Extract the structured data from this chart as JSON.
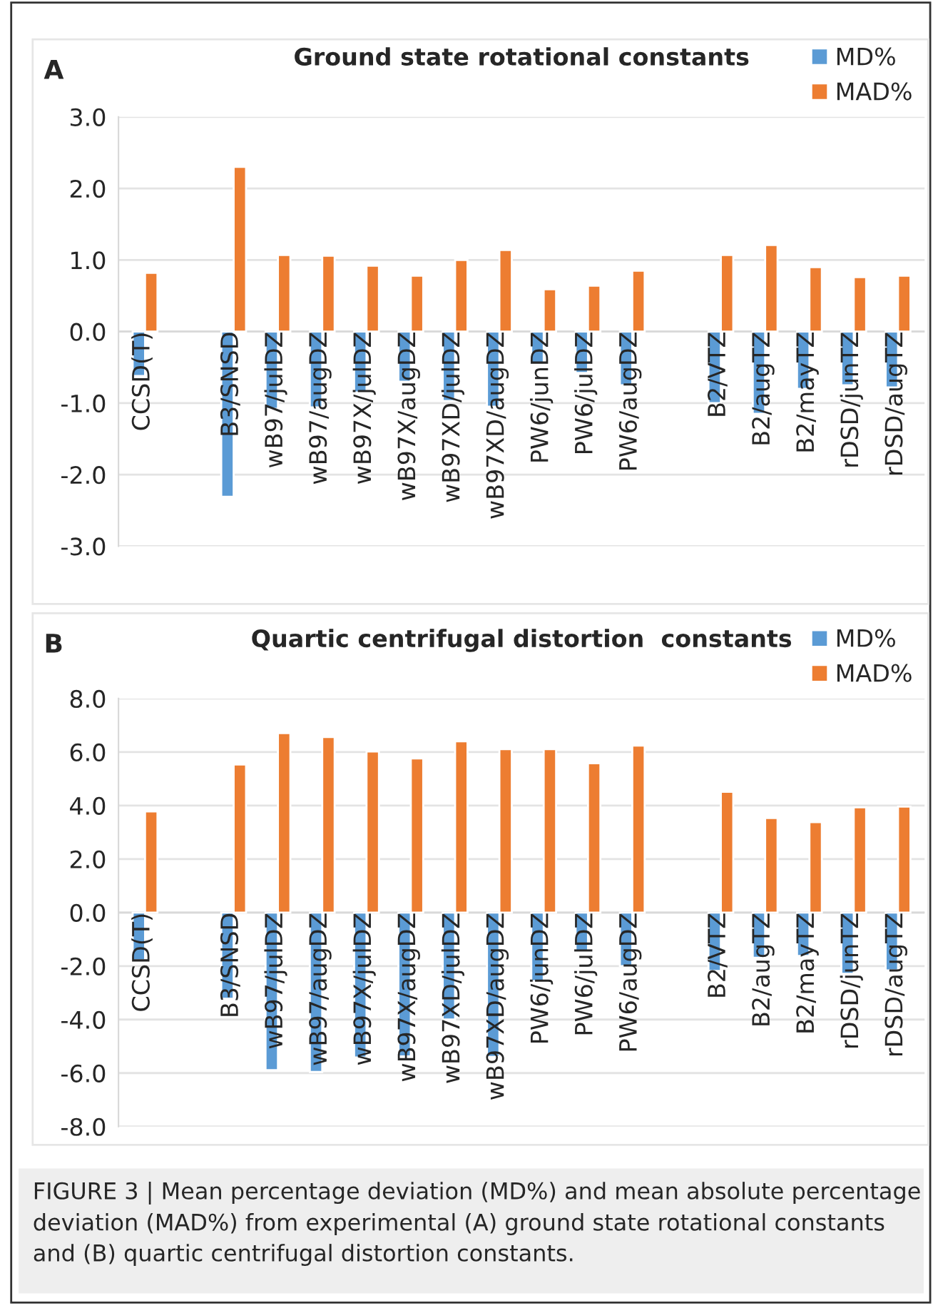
{
  "chart_data": [
    {
      "type": "bar",
      "title": "Ground state rotational constants",
      "categories": [
        "CCSD(T)",
        null,
        "B3/SNSD",
        "wB97/julDZ",
        "wB97/augDZ",
        "wB97X/julDZ",
        "wB97X/augDZ",
        "wB97XD/julDZ",
        "wB97XD/augDZ",
        "PW6/junDZ",
        "PW6/julDZ",
        "PW6/augDZ",
        null,
        "B2/VTZ",
        "B2/augTZ",
        "B2/mayTZ",
        "rDSD/junTZ",
        "rDSD/augTZ"
      ],
      "series": [
        {
          "name": "MD%",
          "color": "#5b9bd5",
          "values": [
            -0.62,
            null,
            -2.31,
            -1.08,
            -1.06,
            -0.85,
            -0.7,
            -0.97,
            -1.05,
            -0.45,
            -0.58,
            -0.75,
            null,
            -1.0,
            -1.15,
            -0.8,
            -0.75,
            -0.78
          ]
        },
        {
          "name": "MAD%",
          "color": "#ed7d31",
          "values": [
            0.82,
            null,
            2.3,
            1.07,
            1.06,
            0.92,
            0.78,
            1.0,
            1.14,
            0.59,
            0.64,
            0.85,
            null,
            1.07,
            1.21,
            0.9,
            0.76,
            0.78
          ]
        }
      ],
      "ylim": [
        -3,
        3
      ],
      "yticks": [
        {
          "value": -3,
          "label": "-3.0"
        },
        {
          "value": -2,
          "label": "-2.0"
        },
        {
          "value": -1,
          "label": "-1.0"
        },
        {
          "value": 0,
          "label": "0.0"
        },
        {
          "value": 1,
          "label": "1.0"
        },
        {
          "value": 2,
          "label": "2.0"
        },
        {
          "value": 3,
          "label": "3.0"
        }
      ],
      "grid": "y",
      "legend": "top right",
      "annotations": [
        "A"
      ]
    },
    {
      "type": "bar",
      "title": "Quartic centrifugal distortion  constants",
      "categories": [
        "CCSD(T)",
        null,
        "B3/SNSD",
        "wB97/julDZ",
        "wB97/augDZ",
        "wB97X/julDZ",
        "wB97X/augDZ",
        "wB97XD/julDZ",
        "wB97XD/augDZ",
        "PW6/junDZ",
        "PW6/julDZ",
        "PW6/augDZ",
        null,
        "B2/VTZ",
        "B2/augTZ",
        "B2/mayTZ",
        "rDSD/junTZ",
        "rDSD/augTZ"
      ],
      "series": [
        {
          "name": "MD%",
          "color": "#5b9bd5",
          "values": [
            -1.78,
            null,
            -3.22,
            -5.89,
            -5.96,
            -5.42,
            -5.38,
            -4.0,
            -5.4,
            -2.56,
            -1.44,
            -2.0,
            null,
            -2.18,
            -1.69,
            -1.62,
            -2.29,
            -2.16
          ]
        },
        {
          "name": "MAD%",
          "color": "#ed7d31",
          "values": [
            3.78,
            null,
            5.53,
            6.71,
            6.56,
            6.02,
            5.76,
            6.4,
            6.11,
            6.11,
            5.58,
            6.24,
            null,
            4.51,
            3.53,
            3.38,
            3.93,
            3.96
          ]
        }
      ],
      "ylim": [
        -8,
        8
      ],
      "yticks": [
        {
          "value": -8,
          "label": "-8.0"
        },
        {
          "value": -6,
          "label": "-6.0"
        },
        {
          "value": -4,
          "label": "-4.0"
        },
        {
          "value": -2,
          "label": "-2.0"
        },
        {
          "value": 0,
          "label": "0.0"
        },
        {
          "value": 2,
          "label": "2.0"
        },
        {
          "value": 4,
          "label": "4.0"
        },
        {
          "value": 6,
          "label": "6.0"
        },
        {
          "value": 8,
          "label": "8.0"
        }
      ],
      "grid": "y",
      "legend": "top right",
      "annotations": [
        "B",
        "FIGURE 3 | Mean percentage deviation (MD%) and mean absolute percentage deviation (MAD%) from experimental (A) ground state rotational constants and (B) quartic centrifugal distortion constants."
      ]
    }
  ]
}
